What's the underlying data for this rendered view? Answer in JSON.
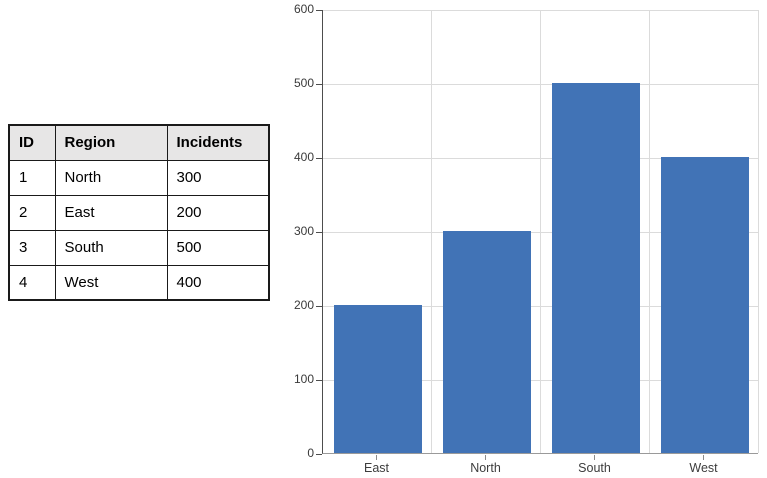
{
  "table": {
    "headers": [
      "ID",
      "Region",
      "Incidents"
    ],
    "rows": [
      [
        "1",
        "North",
        "300"
      ],
      [
        "2",
        "East",
        "200"
      ],
      [
        "3",
        "South",
        "500"
      ],
      [
        "4",
        "West",
        "400"
      ]
    ]
  },
  "chart_data": {
    "type": "bar",
    "categories": [
      "East",
      "North",
      "South",
      "West"
    ],
    "values": [
      200,
      300,
      500,
      400
    ],
    "title": "",
    "xlabel": "",
    "ylabel": "",
    "ylim": [
      0,
      600
    ],
    "ytick_step": 100,
    "yticks": [
      0,
      100,
      200,
      300,
      400,
      500,
      600
    ],
    "grid": true,
    "legend": "none",
    "bar_color": "#4173B6"
  },
  "colors": {
    "bar": "#4173B6",
    "gridline": "#DBDBDB",
    "y_axis_line": "#4d4d4d",
    "x_axis_line": "#9a9a9a",
    "tick_label": "#3a3a3a",
    "table_header_bg": "#E7E6E6",
    "table_border": "#1a1a1a",
    "background": "#ffffff"
  }
}
